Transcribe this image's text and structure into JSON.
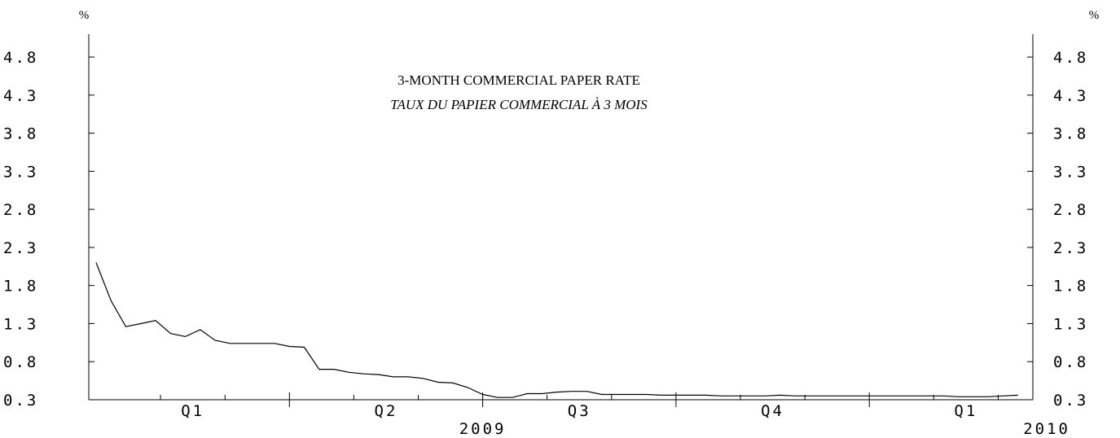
{
  "chart_data": {
    "type": "line",
    "title": "3-MONTH COMMERCIAL PAPER RATE",
    "subtitle": "TAUX DU PAPIER COMMERCIAL À 3 MOIS",
    "unit_left": "%",
    "unit_right": "%",
    "ylim": [
      0.3,
      5.1
    ],
    "yticks": [
      0.3,
      0.8,
      1.3,
      1.8,
      2.3,
      2.8,
      3.3,
      3.8,
      4.3,
      4.8
    ],
    "ytick_labels": [
      "0.3",
      "0.8",
      "1.3",
      "1.8",
      "2.3",
      "2.8",
      "3.3",
      "3.8",
      "4.3",
      "4.8"
    ],
    "quarter_labels": [
      "Q1",
      "Q2",
      "Q3",
      "Q4",
      "Q1"
    ],
    "year_labels": [
      "2009",
      "2010"
    ],
    "xlim": [
      0,
      63
    ],
    "quarter_boundaries": [
      13,
      26,
      39,
      52
    ],
    "month_ticks": [
      4.33,
      8.67,
      17.33,
      21.67,
      30.33,
      34.67,
      43.33,
      47.67,
      56.33,
      60.67
    ],
    "quarter_label_positions": [
      6.5,
      19.5,
      32.5,
      45.5,
      58.5
    ],
    "year_label_positions": [
      26,
      63
    ],
    "series": [
      {
        "x": [
          0,
          1,
          2,
          3,
          4,
          5,
          6,
          7,
          8,
          9,
          10,
          11,
          12,
          13,
          14,
          15,
          16,
          17,
          18,
          19,
          20,
          21,
          22,
          23,
          24,
          25,
          26,
          27,
          28,
          29,
          30,
          31,
          32,
          33,
          34,
          35,
          36,
          37,
          38,
          39,
          40,
          41,
          42,
          43,
          44,
          45,
          46,
          47,
          48,
          49,
          50,
          51,
          52,
          53,
          54,
          55,
          56,
          57,
          58,
          59,
          60,
          61,
          62
        ],
        "values": [
          2.1,
          1.6,
          1.26,
          1.3,
          1.34,
          1.17,
          1.13,
          1.22,
          1.08,
          1.04,
          1.04,
          1.04,
          1.04,
          1.0,
          0.99,
          0.7,
          0.7,
          0.66,
          0.64,
          0.63,
          0.6,
          0.6,
          0.58,
          0.53,
          0.52,
          0.46,
          0.37,
          0.33,
          0.33,
          0.38,
          0.38,
          0.4,
          0.41,
          0.41,
          0.37,
          0.37,
          0.37,
          0.37,
          0.36,
          0.36,
          0.36,
          0.36,
          0.35,
          0.35,
          0.35,
          0.35,
          0.36,
          0.35,
          0.35,
          0.35,
          0.35,
          0.35,
          0.35,
          0.35,
          0.35,
          0.35,
          0.35,
          0.35,
          0.34,
          0.34,
          0.34,
          0.35,
          0.36
        ]
      }
    ],
    "line_color": "#000000"
  }
}
